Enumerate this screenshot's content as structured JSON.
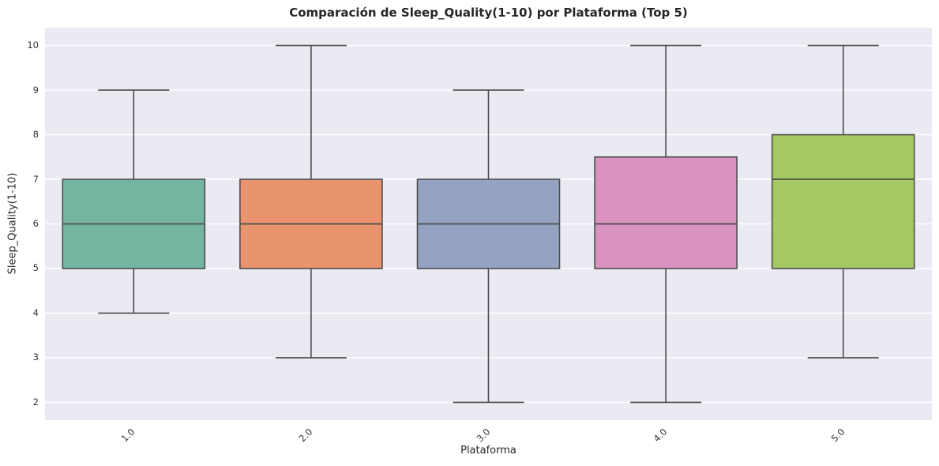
{
  "chart_data": {
    "type": "boxplot",
    "title": "Comparación de Sleep_Quality(1-10) por Plataforma (Top 5)",
    "xlabel": "Plataforma",
    "ylabel": "Sleep_Quality(1-10)",
    "categories": [
      "1.0",
      "2.0",
      "3.0",
      "4.0",
      "5.0"
    ],
    "yticks": [
      2,
      3,
      4,
      5,
      6,
      7,
      8,
      9,
      10
    ],
    "ylim": [
      1.6,
      10.4
    ],
    "grid": true,
    "legend": false,
    "x_tick_rotation_deg": 45,
    "plot_background": "#eaeaf2",
    "gridline_color": "#ffffff",
    "line_color": "#4c4c4c",
    "series": [
      {
        "category": "1.0",
        "whisker_low": 4,
        "q1": 5,
        "median": 6,
        "q3": 7,
        "whisker_high": 9,
        "fill": "#74b5a1"
      },
      {
        "category": "2.0",
        "whisker_low": 3,
        "q1": 5,
        "median": 6,
        "q3": 7,
        "whisker_high": 10,
        "fill": "#e9946f"
      },
      {
        "category": "3.0",
        "whisker_low": 2,
        "q1": 5,
        "median": 6,
        "q3": 7,
        "whisker_high": 9,
        "fill": "#95a3c3"
      },
      {
        "category": "4.0",
        "whisker_low": 2,
        "q1": 5,
        "median": 6,
        "q3": 7.5,
        "whisker_high": 10,
        "fill": "#d993c0"
      },
      {
        "category": "5.0",
        "whisker_low": 3,
        "q1": 5,
        "median": 7,
        "q3": 8,
        "whisker_high": 10,
        "fill": "#a5c963"
      }
    ]
  }
}
